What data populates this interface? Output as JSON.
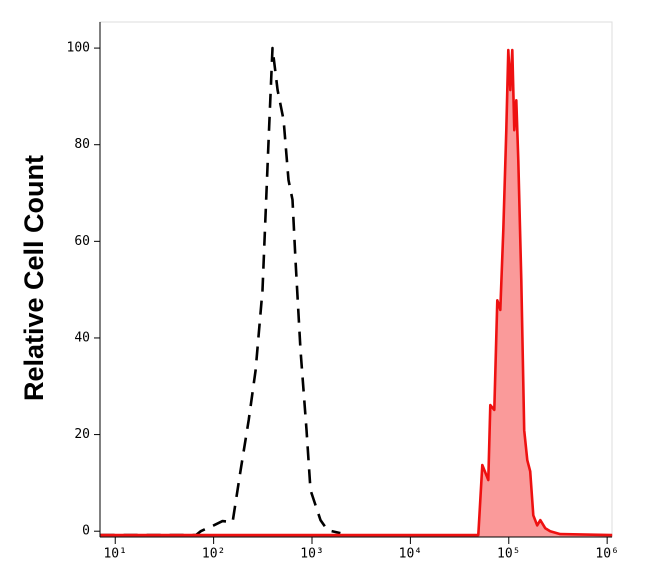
{
  "chart_data": {
    "type": "histogram-overlay",
    "y_label": "Relative Cell Count",
    "x_log": true,
    "xlim": [
      7,
      1120000
    ],
    "ylim": [
      -1.2,
      105.4
    ],
    "xticks": [
      {
        "value": 10,
        "label": "10¹"
      },
      {
        "value": 100,
        "label": "10²"
      },
      {
        "value": 1000,
        "label": "10³"
      },
      {
        "value": 10000,
        "label": "10⁴"
      },
      {
        "value": 100000,
        "label": "10⁵"
      },
      {
        "value": 1000000,
        "label": "10⁶"
      }
    ],
    "yticks": [
      0,
      20,
      40,
      60,
      80,
      100
    ],
    "series": [
      {
        "color": "#000000",
        "dashed": true,
        "filled": false,
        "x": [
          7.1,
          66,
          74,
          100,
          123,
          156,
          188,
          227,
          267,
          314,
          362,
          397,
          447,
          514,
          577,
          634,
          680,
          764,
          880,
          966,
          1086,
          1220,
          1436,
          1945
        ],
        "values": [
          -0.8,
          -0.8,
          0,
          1.2,
          2.1,
          1.9,
          12.6,
          23,
          33.3,
          49.9,
          81,
          100,
          91.3,
          85.1,
          72.7,
          68.6,
          56.1,
          37.5,
          21,
          8.5,
          5.4,
          2.3,
          0.2,
          -0.4
        ]
      },
      {
        "color": "#ee1111",
        "fill": "#fa9a9a",
        "dashed": false,
        "filled": true,
        "x": [
          7.1,
          49000,
          53800,
          61900,
          64900,
          71300,
          76400,
          82000,
          87900,
          94400,
          98900,
          103600,
          108600,
          113800,
          119200,
          124900,
          134000,
          143600,
          154200,
          165200,
          177400,
          194500,
          208900,
          235000,
          263700,
          333400,
          1124000
        ],
        "values": [
          -0.8,
          -0.8,
          13.7,
          10.6,
          26.1,
          25.1,
          47.8,
          45.8,
          62.3,
          83,
          99.6,
          91.3,
          99.6,
          83,
          89.2,
          76.8,
          52,
          20.9,
          14.7,
          12.4,
          3.3,
          1.2,
          2.3,
          0.6,
          0,
          -0.6,
          -0.8
        ]
      }
    ]
  }
}
